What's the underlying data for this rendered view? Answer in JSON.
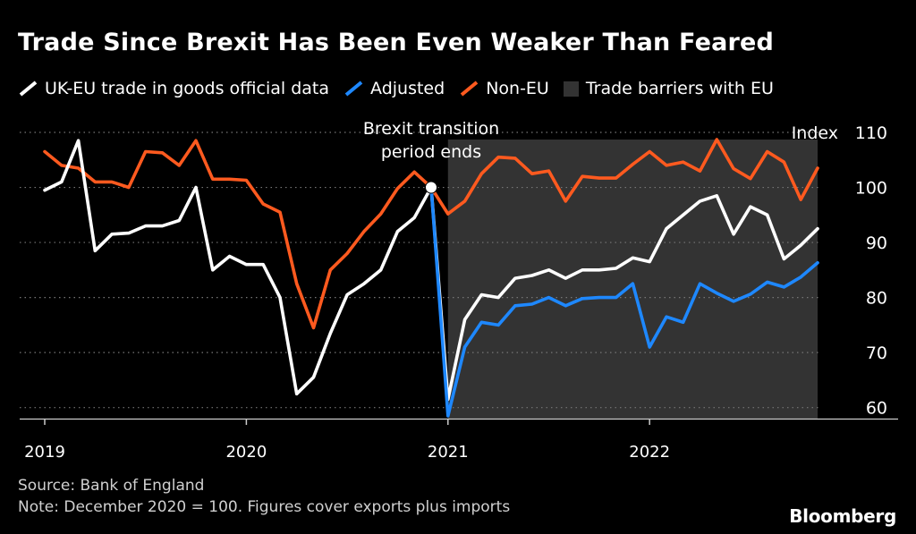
{
  "branding": {
    "logo": "Bloomberg"
  },
  "footer": {
    "source": "Source: Bank of England",
    "note": "Note: December 2020 = 100. Figures cover exports plus imports"
  },
  "colors": {
    "white": "#ffffff",
    "blue": "#1e88ff",
    "orange": "#ff5a1f",
    "shade": "#333333",
    "grid": "#777777"
  },
  "chart_data": {
    "type": "line",
    "title": "Trade Since Brexit Has Been Even Weaker Than Feared",
    "ylabel": "Index",
    "ylim": [
      58,
      110
    ],
    "yticks": [
      60,
      70,
      80,
      90,
      100,
      110
    ],
    "xticks": [
      {
        "label": "2019",
        "month": 0
      },
      {
        "label": "2020",
        "month": 12
      },
      {
        "label": "2021",
        "month": 24
      },
      {
        "label": "2022",
        "month": 36
      }
    ],
    "xmonth_range": [
      0,
      46
    ],
    "legend": [
      {
        "name": "UK-EU trade in goods official data",
        "kind": "line",
        "color": "#ffffff"
      },
      {
        "name": "Adjusted",
        "kind": "line",
        "color": "#1e88ff"
      },
      {
        "name": "Non-EU",
        "kind": "line",
        "color": "#ff5a1f"
      },
      {
        "name": "Trade barriers with EU",
        "kind": "area",
        "color": "#333333"
      }
    ],
    "shaded_region": {
      "label": "Trade barriers with EU",
      "x_start": 24,
      "x_end": 46
    },
    "annotation": {
      "line1": "Brexit transition",
      "line2": "period ends",
      "x": 23,
      "y": 100
    },
    "series": [
      {
        "name": "UK-EU trade in goods official data",
        "color": "#ffffff",
        "x": [
          0,
          1,
          2,
          3,
          4,
          5,
          6,
          7,
          8,
          9,
          10,
          11,
          12,
          13,
          14,
          15,
          16,
          17,
          18,
          19,
          20,
          21,
          22,
          23,
          24,
          25,
          26,
          27,
          28,
          29,
          30,
          31,
          32,
          33,
          34,
          35,
          36,
          37,
          38,
          39,
          40,
          41,
          42,
          43,
          44,
          45,
          46
        ],
        "values": [
          99.5,
          101,
          108.5,
          88.5,
          91.5,
          91.7,
          93,
          93,
          94,
          100,
          85,
          87.5,
          86,
          86,
          80,
          62.5,
          65.5,
          73.5,
          80.5,
          82.5,
          85,
          92,
          94.5,
          100,
          61.5,
          76,
          80.5,
          80,
          83.5,
          84,
          85,
          83.5,
          85,
          85,
          85.3,
          87.2,
          86.5,
          92.5,
          95,
          97.5,
          98.5,
          91.5,
          96.5,
          95,
          87,
          89.5,
          92.5
        ]
      },
      {
        "name": "Adjusted",
        "color": "#1e88ff",
        "x": [
          23,
          24,
          25,
          26,
          27,
          28,
          29,
          30,
          31,
          32,
          33,
          34,
          35,
          36,
          37,
          38,
          39,
          40,
          41,
          42,
          43,
          44,
          45,
          46
        ],
        "values": [
          100,
          58.5,
          71,
          75.5,
          75,
          78.5,
          78.8,
          80,
          78.5,
          79.8,
          80,
          80,
          82.5,
          71,
          76.5,
          75.5,
          82.5,
          80.8,
          79.3,
          80.6,
          82.8,
          81.9,
          83.7,
          86.3
        ]
      },
      {
        "name": "Non-EU",
        "color": "#ff5a1f",
        "x": [
          0,
          1,
          2,
          3,
          4,
          5,
          6,
          7,
          8,
          9,
          10,
          11,
          12,
          13,
          14,
          15,
          16,
          17,
          18,
          19,
          20,
          21,
          22,
          23,
          24,
          25,
          26,
          27,
          28,
          29,
          30,
          31,
          32,
          33,
          34,
          35,
          36,
          37,
          38,
          39,
          40,
          41,
          42,
          43,
          44,
          45,
          46
        ],
        "values": [
          106.5,
          104,
          103.5,
          101,
          101,
          100,
          106.5,
          106.3,
          104,
          108.5,
          101.5,
          101.5,
          101.3,
          97,
          95.5,
          82.5,
          74.5,
          85,
          88,
          92,
          95.2,
          99.8,
          102.8,
          100,
          95.2,
          97.5,
          102.5,
          105.5,
          105.3,
          102.5,
          103,
          97.5,
          102,
          101.7,
          101.7,
          104.2,
          106.5,
          104,
          104.6,
          103,
          108.7,
          103.4,
          101.6,
          106.5,
          104.6,
          97.8,
          103.5
        ]
      }
    ]
  }
}
